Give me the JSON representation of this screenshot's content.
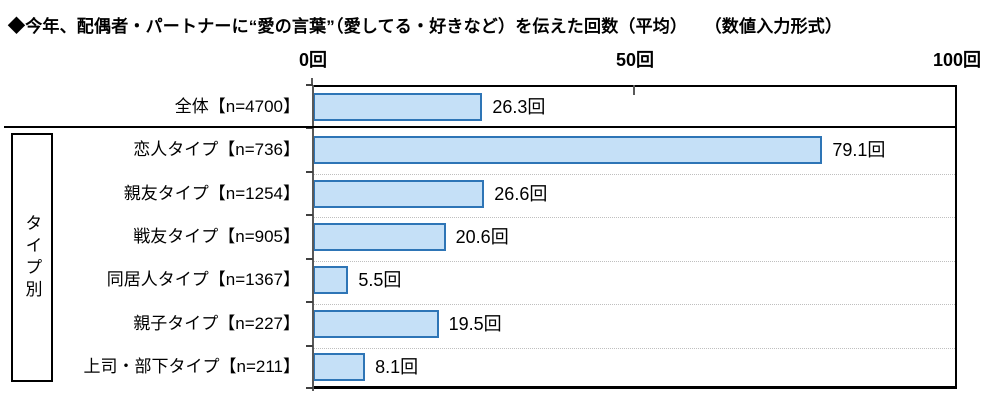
{
  "title": "◆今年、配偶者・パートナーに“愛の言葉”（愛してる・好きなど）を伝えた回数（平均）　　（数値入力形式）",
  "chart_data": {
    "type": "bar",
    "orientation": "horizontal",
    "title": "今年、配偶者・パートナーに“愛の言葉”（愛してる・好きなど）を伝えた回数（平均）（数値入力形式）",
    "unit": "回",
    "xlim": [
      0,
      100
    ],
    "axis_ticks": [
      "0回",
      "50回",
      "100回"
    ],
    "grid": "dotted-row-separators",
    "group_label": "タイプ別",
    "categories": [
      "全体【n=4700】",
      "恋人タイプ【n=736】",
      "親友タイプ【n=1254】",
      "戦友タイプ【n=905】",
      "同居人タイプ【n=1367】",
      "親子タイプ【n=227】",
      "上司・部下タイプ【n=211】"
    ],
    "values": [
      26.3,
      79.1,
      26.6,
      20.6,
      5.5,
      19.5,
      8.1
    ],
    "value_labels": [
      "26.3回",
      "79.1回",
      "26.6回",
      "20.6回",
      "5.5回",
      "19.5回",
      "8.1回"
    ],
    "bar_fill": "#c5e0f7",
    "bar_border": "#2e75b6"
  }
}
